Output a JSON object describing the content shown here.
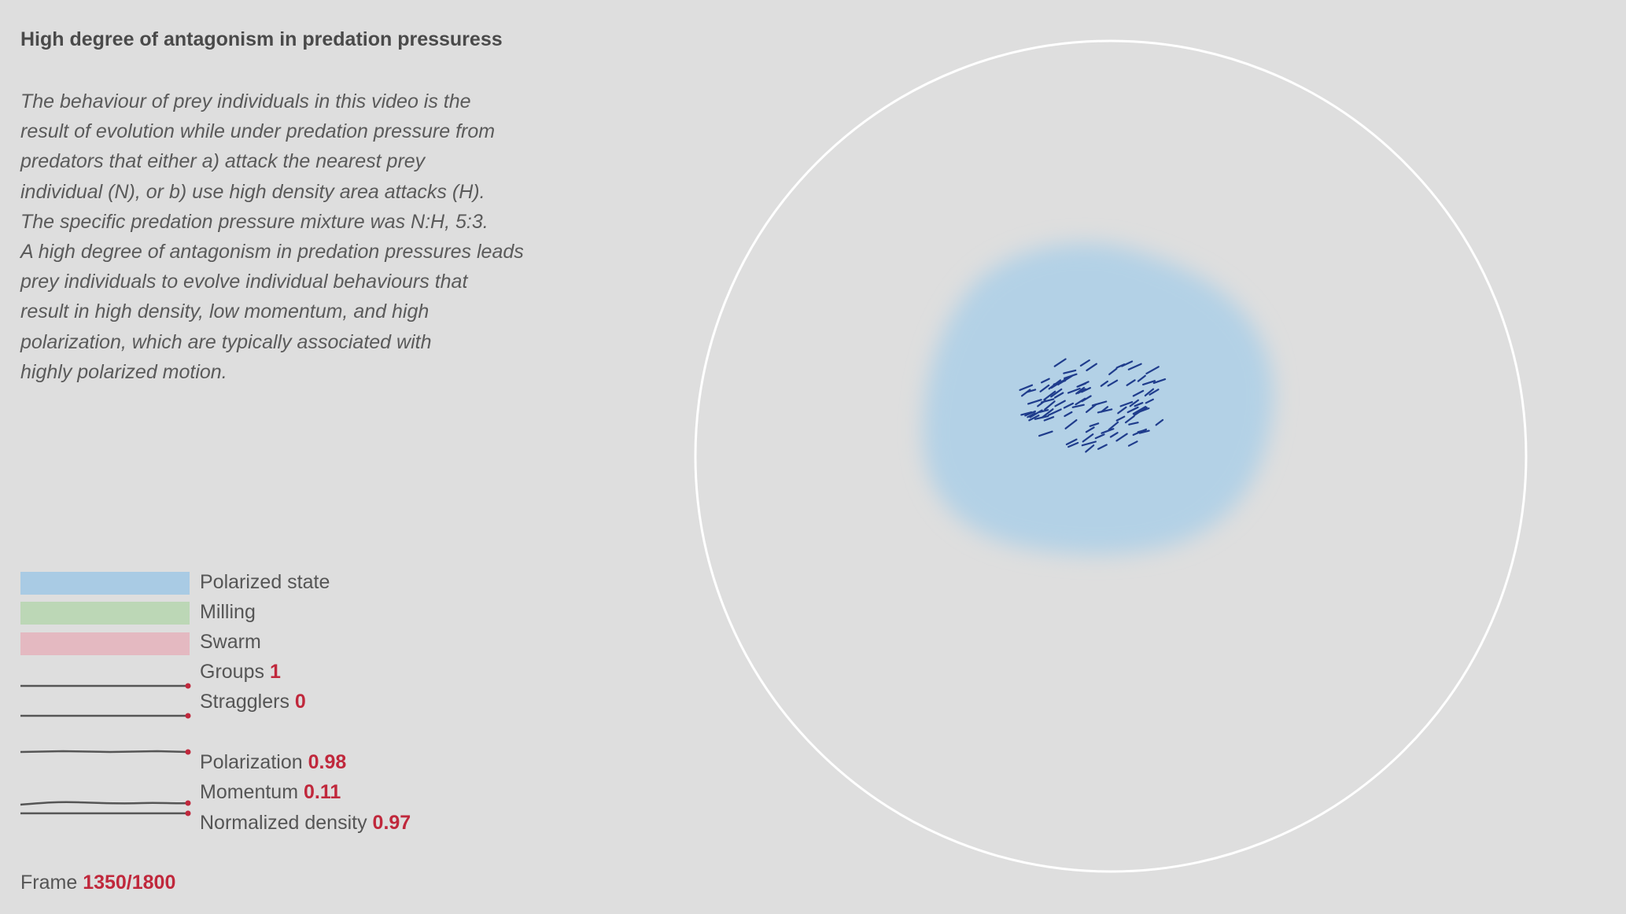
{
  "title": "High degree of antagonism in predation pressuress",
  "description_lines": [
    "The behaviour of prey individuals in this video is the",
    "result of evolution while under predation pressure from",
    "predators that either a) attack the nearest prey",
    "individual (N), or b) use high density area attacks (H).",
    "The specific predation pressure mixture was N:H, 5:3.",
    "A high degree of antagonism in predation pressures leads",
    "prey individuals to evolve individual behaviours that",
    "result in high density, low momentum, and high",
    "polarization, which are typically associated with",
    "highly polarized motion."
  ],
  "legend": {
    "states": [
      {
        "label": "Polarized state",
        "color": "#a9cbe4"
      },
      {
        "label": "Milling",
        "color": "#bcd7b6"
      },
      {
        "label": "Swarm",
        "color": "#e4b9c1"
      }
    ],
    "metrics": {
      "groups": {
        "label": "Groups",
        "value": "1"
      },
      "stragglers": {
        "label": "Stragglers",
        "value": "0"
      },
      "polarization": {
        "label": "Polarization",
        "value": "0.98"
      },
      "momentum": {
        "label": "Momentum",
        "value": "0.11"
      },
      "density": {
        "label": "Normalized density",
        "value": "0.97"
      }
    }
  },
  "frame": {
    "label": "Frame",
    "value": "1350/1800"
  },
  "colors": {
    "background": "#dedede",
    "accent": "#c0283c",
    "arena_border": "#ffffff",
    "polarized_region": "#b3d1e6",
    "prey": "#1f3c8c",
    "sparkline": "#555555"
  }
}
